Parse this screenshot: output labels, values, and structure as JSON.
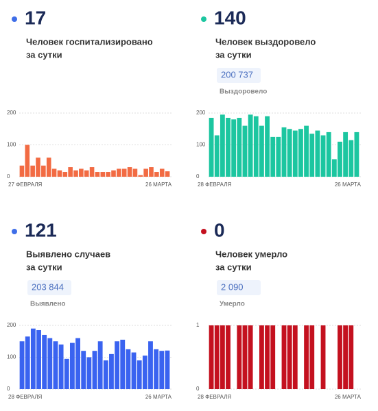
{
  "chart_data": [
    {
      "type": "bar",
      "headline": 17,
      "dot_color": "#3f6ee8",
      "caption": [
        "Человек госпитализировано",
        "за сутки"
      ],
      "categories": [
        "27 ФЕВРАЛЯ",
        null,
        null,
        null,
        null,
        null,
        null,
        null,
        null,
        null,
        null,
        null,
        null,
        null,
        null,
        null,
        null,
        null,
        null,
        null,
        null,
        null,
        null,
        null,
        null,
        null,
        null,
        "26 МАРТА"
      ],
      "values": [
        35,
        100,
        35,
        60,
        35,
        60,
        25,
        20,
        15,
        30,
        20,
        25,
        20,
        30,
        15,
        15,
        15,
        20,
        25,
        25,
        30,
        25,
        5,
        25,
        30,
        15,
        25,
        17
      ],
      "color": "#f26b43",
      "ylim": [
        0,
        200
      ],
      "yticks": [
        0,
        100,
        200
      ],
      "grid": true
    },
    {
      "type": "bar",
      "headline": 140,
      "dot_color": "#1cc6a0",
      "caption": [
        "Человек выздоровело",
        "за сутки"
      ],
      "total": "200 737",
      "total_label": "Выздоровело",
      "categories": [
        "28 ФЕВРАЛЯ",
        null,
        null,
        null,
        null,
        null,
        null,
        null,
        null,
        null,
        null,
        null,
        null,
        null,
        null,
        null,
        null,
        null,
        null,
        null,
        null,
        null,
        null,
        null,
        null,
        null,
        "26 МАРТА"
      ],
      "values": [
        185,
        130,
        195,
        185,
        180,
        185,
        160,
        195,
        190,
        160,
        190,
        125,
        125,
        155,
        150,
        145,
        150,
        160,
        135,
        145,
        130,
        140,
        55,
        110,
        140,
        115,
        140
      ],
      "color": "#1cc6a0",
      "ylim": [
        0,
        200
      ],
      "yticks": [
        0,
        100,
        200
      ],
      "grid": true
    },
    {
      "type": "bar",
      "headline": 121,
      "dot_color": "#3f6ee8",
      "caption": [
        "Выявлено случаев",
        "за сутки"
      ],
      "total": "203 844",
      "total_label": "Выявлено",
      "categories": [
        "28 ФЕВРАЛЯ",
        null,
        null,
        null,
        null,
        null,
        null,
        null,
        null,
        null,
        null,
        null,
        null,
        null,
        null,
        null,
        null,
        null,
        null,
        null,
        null,
        null,
        null,
        null,
        null,
        null,
        "26 МАРТА"
      ],
      "values": [
        150,
        165,
        190,
        185,
        170,
        160,
        150,
        140,
        95,
        145,
        160,
        120,
        100,
        120,
        150,
        90,
        110,
        150,
        155,
        125,
        115,
        90,
        105,
        150,
        125,
        120,
        121
      ],
      "color": "#3a63f0",
      "ylim": [
        0,
        200
      ],
      "yticks": [
        0,
        100,
        200
      ],
      "grid": true
    },
    {
      "type": "bar",
      "headline": 0,
      "dot_color": "#c4111f",
      "caption": [
        "Человек умерло",
        "за сутки"
      ],
      "total": "2 090",
      "total_label": "Умерло",
      "categories": [
        "28 ФЕВРАЛЯ",
        null,
        null,
        null,
        null,
        null,
        null,
        null,
        null,
        null,
        null,
        null,
        null,
        null,
        null,
        null,
        null,
        null,
        null,
        null,
        null,
        null,
        null,
        null,
        null,
        null,
        "26 МАРТА"
      ],
      "values": [
        1,
        1,
        1,
        1,
        0,
        1,
        1,
        1,
        0,
        1,
        1,
        1,
        0,
        1,
        1,
        1,
        0,
        1,
        1,
        0,
        1,
        0,
        0,
        1,
        1,
        1,
        0
      ],
      "color": "#c4111f",
      "ylim": [
        0,
        1
      ],
      "yticks": [
        0,
        1
      ],
      "grid": true
    }
  ]
}
